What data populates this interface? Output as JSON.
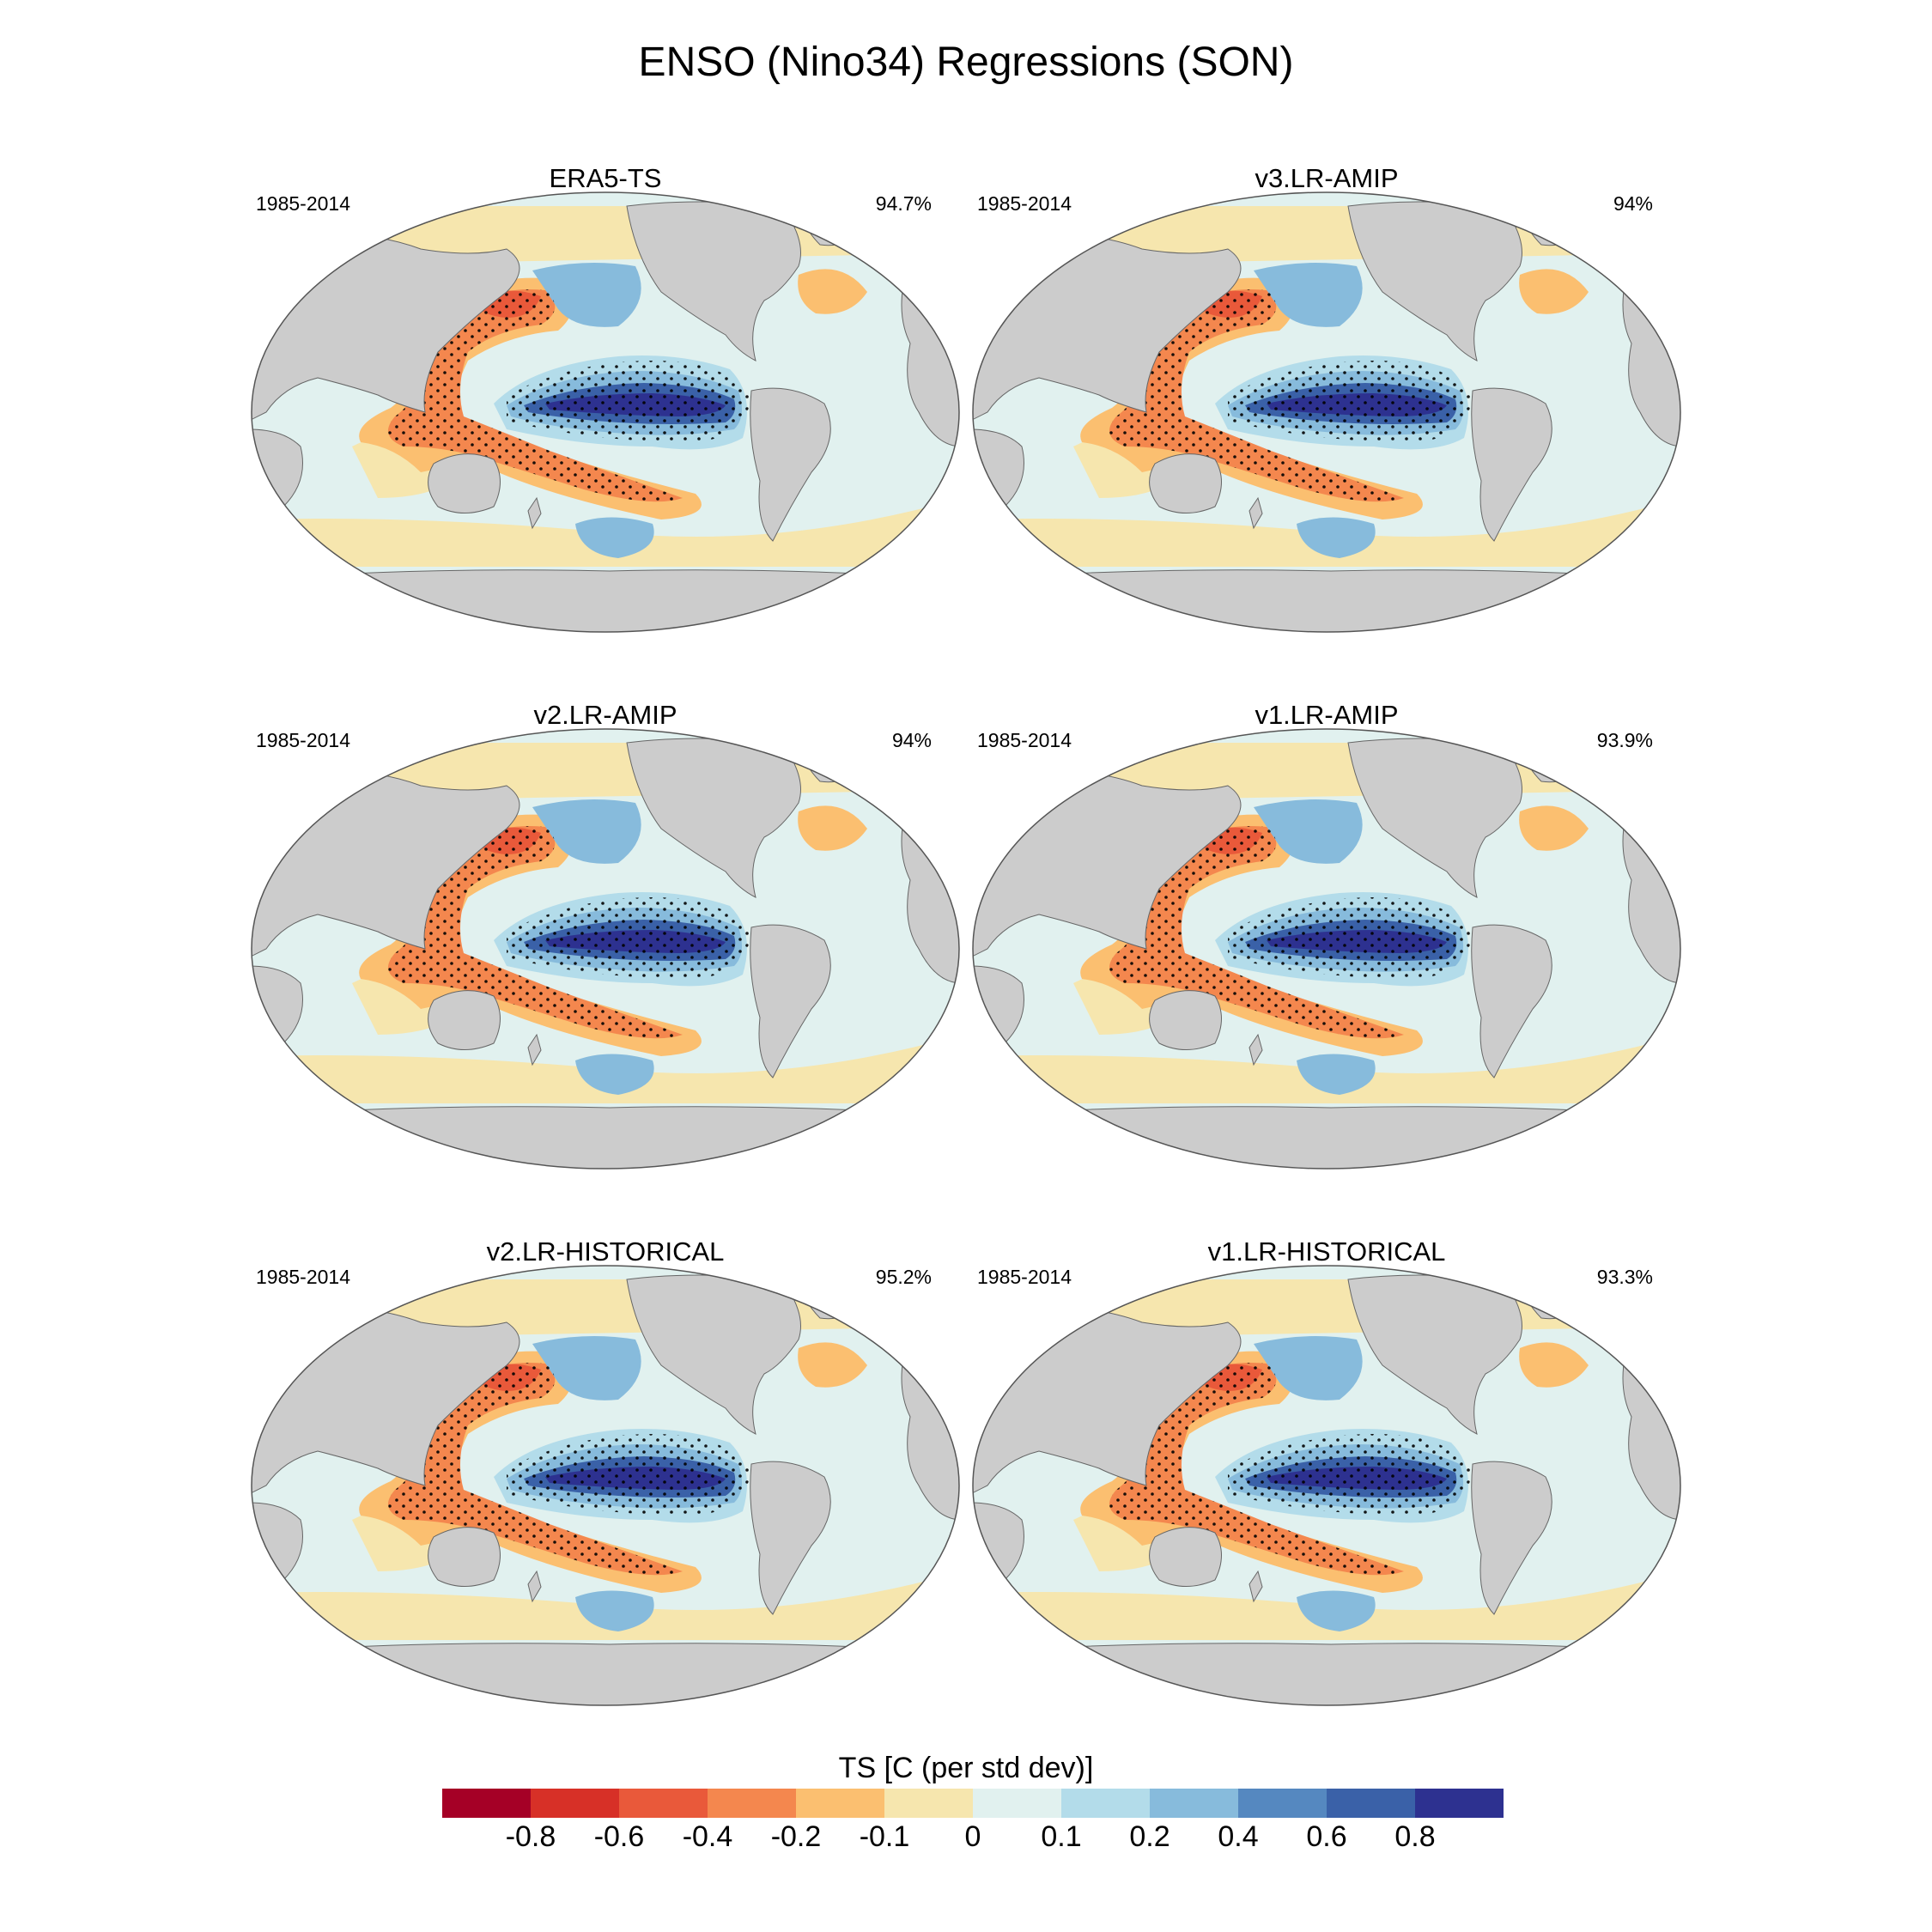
{
  "title": "ENSO (Nino34) Regressions (SON)",
  "panels": [
    {
      "title": "ERA5-TS",
      "period": "1985-2014",
      "pattern_corr": "94.7%"
    },
    {
      "title": "v3.LR-AMIP",
      "period": "1985-2014",
      "pattern_corr": "94%"
    },
    {
      "title": "v2.LR-AMIP",
      "period": "1985-2014",
      "pattern_corr": "94%"
    },
    {
      "title": "v1.LR-AMIP",
      "period": "1985-2014",
      "pattern_corr": "93.9%"
    },
    {
      "title": "v2.LR-HISTORICAL",
      "period": "1985-2014",
      "pattern_corr": "95.2%"
    },
    {
      "title": "v1.LR-HISTORICAL",
      "period": "1985-2014",
      "pattern_corr": "93.3%"
    }
  ],
  "colorbar": {
    "title": "TS [C (per std dev)]",
    "colors": [
      "#a50026",
      "#d73027",
      "#e9593a",
      "#f4874e",
      "#fbbf70",
      "#f6e6ae",
      "#e1f1ef",
      "#b3dcea",
      "#87bbdc",
      "#5588c0",
      "#3a61a8",
      "#2d3190"
    ],
    "labels": [
      "-0.8",
      "-0.6",
      "-0.4",
      "-0.2",
      "-0.1",
      "0",
      "0.1",
      "0.2",
      "0.4",
      "0.6",
      "0.8"
    ]
  },
  "colors": {
    "land": "#cccccc",
    "coast": "#666666",
    "stipple": "#000000"
  }
}
